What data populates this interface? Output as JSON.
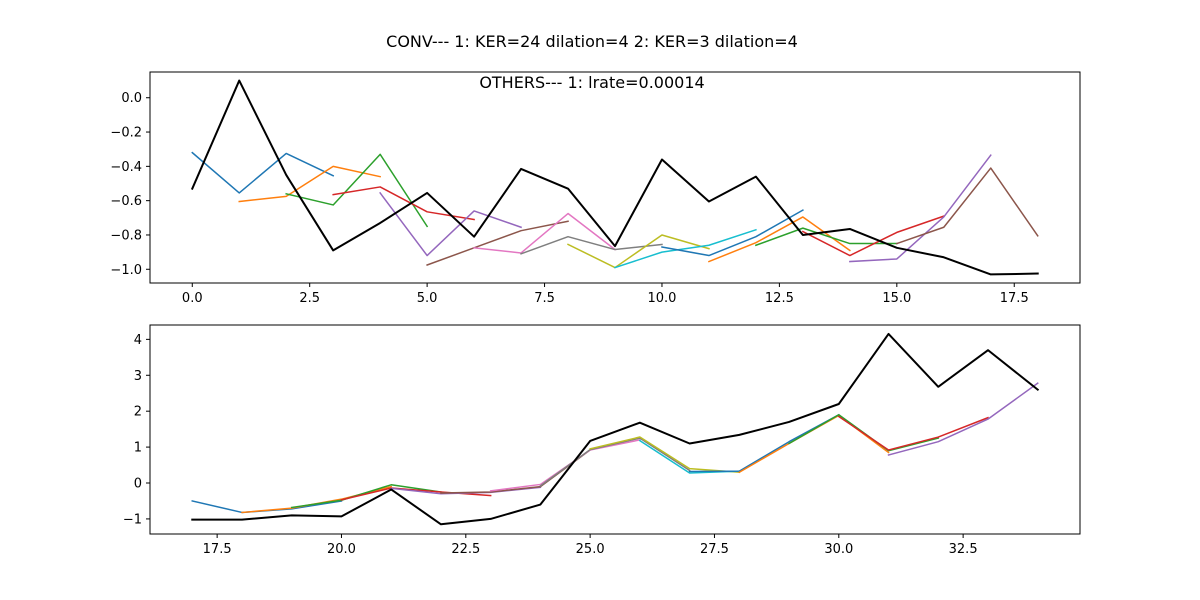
{
  "figure": {
    "suptitle": "CONV--- 1: KER=24   dilation=4   2: KER=3   dilation=4"
  },
  "chart_data": [
    {
      "type": "line",
      "title": "OTHERS--- 1: lrate=0.00014",
      "xlabel": "",
      "ylabel": "",
      "xlim": [
        -0.9,
        18.9
      ],
      "ylim": [
        -1.08,
        0.15
      ],
      "xticks": [
        0.0,
        2.5,
        5.0,
        7.5,
        10.0,
        12.5,
        15.0,
        17.5
      ],
      "xtick_labels": [
        "0.0",
        "2.5",
        "5.0",
        "7.5",
        "10.0",
        "12.5",
        "15.0",
        "17.5"
      ],
      "yticks": [
        -1.0,
        -0.8,
        -0.6,
        -0.4,
        -0.2,
        0.0
      ],
      "ytick_labels": [
        "−1.0",
        "−0.8",
        "−0.6",
        "−0.4",
        "−0.2",
        "0.0"
      ],
      "grid": false,
      "series": [
        {
          "color": "#000000",
          "width": 2,
          "x": [
            0,
            1,
            2,
            3,
            4,
            5,
            6,
            7,
            8,
            9,
            10,
            11,
            12,
            13,
            14,
            15,
            16,
            17,
            18
          ],
          "values": [
            -0.53,
            0.1,
            -0.45,
            -0.89,
            -0.73,
            -0.555,
            -0.81,
            -0.415,
            -0.53,
            -0.865,
            -0.36,
            -0.605,
            -0.46,
            -0.8,
            -0.765,
            -0.875,
            -0.93,
            -1.03,
            -1.025
          ]
        },
        {
          "color": "#1f77b4",
          "x": [
            0,
            1,
            2,
            3
          ],
          "values": [
            -0.32,
            -0.555,
            -0.325,
            -0.455
          ]
        },
        {
          "color": "#ff7f0e",
          "x": [
            1,
            2,
            3,
            4
          ],
          "values": [
            -0.605,
            -0.575,
            -0.4,
            -0.46
          ]
        },
        {
          "color": "#2ca02c",
          "x": [
            2,
            3,
            4,
            5
          ],
          "values": [
            -0.56,
            -0.625,
            -0.33,
            -0.75
          ]
        },
        {
          "color": "#d62728",
          "x": [
            3,
            4,
            5,
            6
          ],
          "values": [
            -0.565,
            -0.52,
            -0.665,
            -0.71
          ]
        },
        {
          "color": "#9467bd",
          "x": [
            4,
            5,
            6,
            7
          ],
          "values": [
            -0.555,
            -0.92,
            -0.66,
            -0.755
          ]
        },
        {
          "color": "#8c564b",
          "x": [
            5,
            6,
            7,
            8
          ],
          "values": [
            -0.975,
            -0.875,
            -0.775,
            -0.72
          ]
        },
        {
          "color": "#e377c2",
          "x": [
            6,
            7,
            8,
            9
          ],
          "values": [
            -0.875,
            -0.905,
            -0.675,
            -0.885
          ]
        },
        {
          "color": "#7f7f7f",
          "x": [
            7,
            8,
            9,
            10
          ],
          "values": [
            -0.91,
            -0.81,
            -0.885,
            -0.855
          ]
        },
        {
          "color": "#bcbd22",
          "x": [
            8,
            9,
            10,
            11
          ],
          "values": [
            -0.855,
            -0.99,
            -0.8,
            -0.88
          ]
        },
        {
          "color": "#17becf",
          "x": [
            9,
            10,
            11,
            12
          ],
          "values": [
            -0.99,
            -0.9,
            -0.86,
            -0.77
          ]
        },
        {
          "color": "#1f77b4",
          "x": [
            10,
            11,
            12,
            13
          ],
          "values": [
            -0.87,
            -0.92,
            -0.81,
            -0.655
          ]
        },
        {
          "color": "#ff7f0e",
          "x": [
            11,
            12,
            13,
            14
          ],
          "values": [
            -0.955,
            -0.845,
            -0.695,
            -0.89
          ]
        },
        {
          "color": "#2ca02c",
          "x": [
            12,
            13,
            14,
            15
          ],
          "values": [
            -0.86,
            -0.76,
            -0.85,
            -0.85
          ]
        },
        {
          "color": "#d62728",
          "x": [
            13,
            14,
            15,
            16
          ],
          "values": [
            -0.78,
            -0.92,
            -0.785,
            -0.69
          ]
        },
        {
          "color": "#9467bd",
          "x": [
            14,
            15,
            16,
            17
          ],
          "values": [
            -0.955,
            -0.94,
            -0.695,
            -0.335
          ]
        },
        {
          "color": "#8c564b",
          "x": [
            15,
            16,
            17,
            18
          ],
          "values": [
            -0.85,
            -0.755,
            -0.41,
            -0.805
          ]
        }
      ]
    },
    {
      "type": "line",
      "title": "",
      "xlabel": "",
      "ylabel": "",
      "xlim": [
        16.15,
        34.85
      ],
      "ylim": [
        -1.42,
        4.4
      ],
      "xticks": [
        17.5,
        20.0,
        22.5,
        25.0,
        27.5,
        30.0,
        32.5
      ],
      "xtick_labels": [
        "17.5",
        "20.0",
        "22.5",
        "25.0",
        "27.5",
        "30.0",
        "32.5"
      ],
      "yticks": [
        -1,
        0,
        1,
        2,
        3,
        4
      ],
      "ytick_labels": [
        "−1",
        "0",
        "1",
        "2",
        "3",
        "4"
      ],
      "grid": false,
      "series": [
        {
          "color": "#000000",
          "width": 2,
          "x": [
            17,
            18,
            19,
            20,
            21,
            22,
            23,
            24,
            25,
            26,
            27,
            28,
            29,
            30,
            31,
            32,
            33,
            34
          ],
          "values": [
            -1.02,
            -1.02,
            -0.9,
            -0.93,
            -0.18,
            -1.15,
            -1.0,
            -0.6,
            1.17,
            1.68,
            1.1,
            1.34,
            1.7,
            2.2,
            4.15,
            2.68,
            3.7,
            2.6
          ]
        },
        {
          "color": "#1f77b4",
          "x": [
            17,
            18,
            19,
            20
          ],
          "values": [
            -0.5,
            -0.82,
            -0.72,
            -0.5
          ]
        },
        {
          "color": "#ff7f0e",
          "x": [
            18,
            19,
            20,
            21
          ],
          "values": [
            -0.82,
            -0.7,
            -0.45,
            -0.1
          ]
        },
        {
          "color": "#2ca02c",
          "x": [
            19,
            20,
            21,
            22
          ],
          "values": [
            -0.68,
            -0.48,
            -0.05,
            -0.25
          ]
        },
        {
          "color": "#d62728",
          "x": [
            20,
            21,
            22,
            23
          ],
          "values": [
            -0.47,
            -0.14,
            -0.25,
            -0.35
          ]
        },
        {
          "color": "#9467bd",
          "x": [
            21,
            22,
            23,
            24
          ],
          "values": [
            -0.15,
            -0.3,
            -0.26,
            -0.12
          ]
        },
        {
          "color": "#8c564b",
          "x": [
            22,
            23,
            24,
            25
          ],
          "values": [
            -0.28,
            -0.25,
            -0.1,
            0.92
          ]
        },
        {
          "color": "#e377c2",
          "x": [
            23,
            24,
            25,
            26
          ],
          "values": [
            -0.22,
            -0.04,
            0.92,
            1.2
          ]
        },
        {
          "color": "#7f7f7f",
          "x": [
            24,
            25,
            26,
            27
          ],
          "values": [
            -0.08,
            0.93,
            1.25,
            0.35
          ]
        },
        {
          "color": "#bcbd22",
          "x": [
            25,
            26,
            27,
            28
          ],
          "values": [
            0.95,
            1.28,
            0.4,
            0.3
          ]
        },
        {
          "color": "#17becf",
          "x": [
            26,
            27,
            28
          ],
          "values": [
            1.18,
            0.28,
            0.33
          ]
        },
        {
          "color": "#1f77b4",
          "x": [
            27,
            28,
            29,
            30
          ],
          "values": [
            0.32,
            0.33,
            1.15,
            1.9
          ]
        },
        {
          "color": "#ff7f0e",
          "x": [
            28,
            29,
            30,
            31
          ],
          "values": [
            0.3,
            1.1,
            1.88,
            0.85
          ]
        },
        {
          "color": "#2ca02c",
          "x": [
            29,
            30,
            31,
            32
          ],
          "values": [
            1.1,
            1.9,
            0.9,
            1.25
          ]
        },
        {
          "color": "#d62728",
          "x": [
            30,
            31,
            32,
            33
          ],
          "values": [
            1.85,
            0.92,
            1.28,
            1.82
          ]
        },
        {
          "color": "#9467bd",
          "x": [
            31,
            32,
            33,
            34
          ],
          "values": [
            0.78,
            1.15,
            1.78,
            2.78
          ]
        }
      ]
    }
  ]
}
